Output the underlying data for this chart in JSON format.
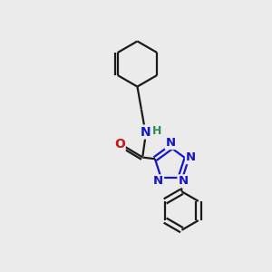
{
  "bg_color": "#ebebeb",
  "bond_color": "#1a1a1a",
  "nitrogen_color": "#1414cc",
  "oxygen_color": "#cc1414",
  "hydrogen_color": "#2e8b57",
  "line_width": 1.6,
  "font_size_atom": 10,
  "xlim": [
    -2.5,
    3.0
  ],
  "ylim": [
    -0.5,
    9.5
  ]
}
